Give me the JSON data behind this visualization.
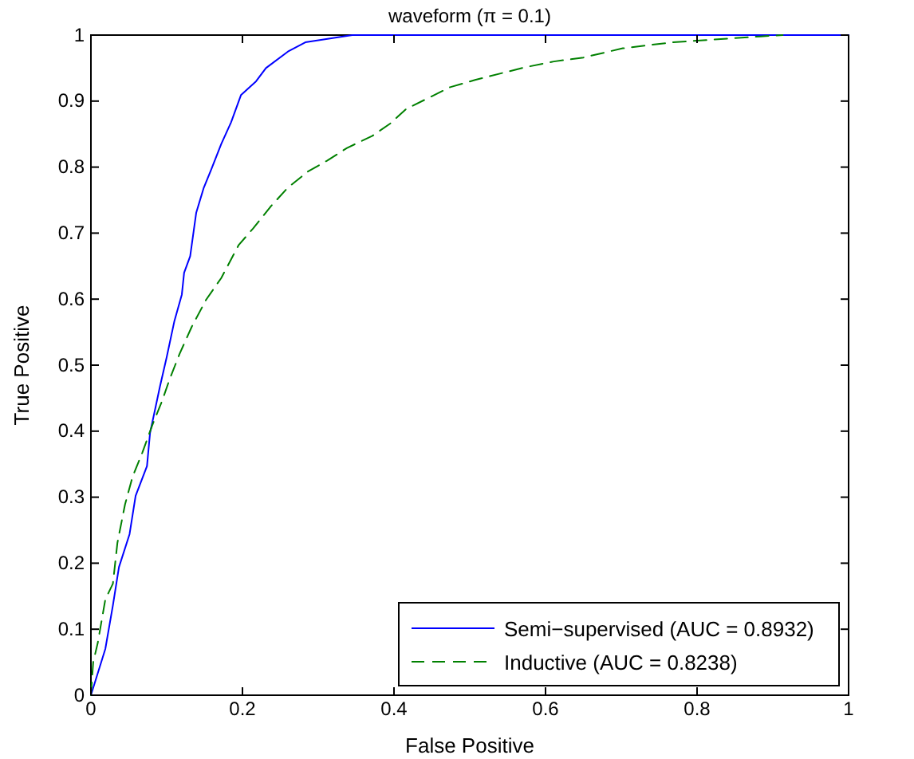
{
  "chart_data": {
    "type": "line",
    "title": "waveform (π = 0.1)",
    "xlabel": "False Positive",
    "ylabel": "True Positive",
    "xlim": [
      0,
      1
    ],
    "ylim": [
      0,
      1
    ],
    "xticks": [
      0,
      0.2,
      0.4,
      0.6,
      0.8,
      1
    ],
    "yticks": [
      0,
      0.1,
      0.2,
      0.3,
      0.4,
      0.5,
      0.6,
      0.7,
      0.8,
      0.9,
      1
    ],
    "grid": false,
    "legend": "bottom right",
    "series": [
      {
        "name": "Semi−supervised (AUC = 0.8932)",
        "color": "#0000ff",
        "line_style": "solid",
        "x": [
          0,
          0.019,
          0.029,
          0.037,
          0.051,
          0.059,
          0.074,
          0.078,
          0.091,
          0.1,
          0.11,
          0.12,
          0.123,
          0.131,
          0.139,
          0.149,
          0.159,
          0.172,
          0.185,
          0.198,
          0.218,
          0.231,
          0.26,
          0.283,
          0.345,
          1
        ],
        "values": [
          0,
          0.07,
          0.136,
          0.194,
          0.244,
          0.302,
          0.347,
          0.397,
          0.467,
          0.512,
          0.566,
          0.607,
          0.64,
          0.665,
          0.731,
          0.769,
          0.797,
          0.835,
          0.868,
          0.909,
          0.93,
          0.95,
          0.975,
          0.989,
          1,
          1
        ]
      },
      {
        "name": "Inductive (AUC = 0.8238)",
        "color": "#008000",
        "line_style": "dashed",
        "x": [
          0,
          0.003,
          0.009,
          0.019,
          0.029,
          0.035,
          0.045,
          0.055,
          0.068,
          0.081,
          0.094,
          0.104,
          0.117,
          0.133,
          0.152,
          0.172,
          0.195,
          0.214,
          0.237,
          0.26,
          0.286,
          0.312,
          0.338,
          0.371,
          0.395,
          0.416,
          0.474,
          0.507,
          0.572,
          0.611,
          0.65,
          0.702,
          0.767,
          0.819,
          0.884,
          0.913
        ],
        "values": [
          0,
          0.05,
          0.079,
          0.145,
          0.169,
          0.231,
          0.289,
          0.331,
          0.368,
          0.409,
          0.446,
          0.479,
          0.517,
          0.558,
          0.599,
          0.632,
          0.682,
          0.707,
          0.74,
          0.769,
          0.793,
          0.81,
          0.829,
          0.847,
          0.866,
          0.888,
          0.921,
          0.932,
          0.951,
          0.96,
          0.966,
          0.98,
          0.989,
          0.993,
          0.998,
          1
        ]
      }
    ]
  }
}
